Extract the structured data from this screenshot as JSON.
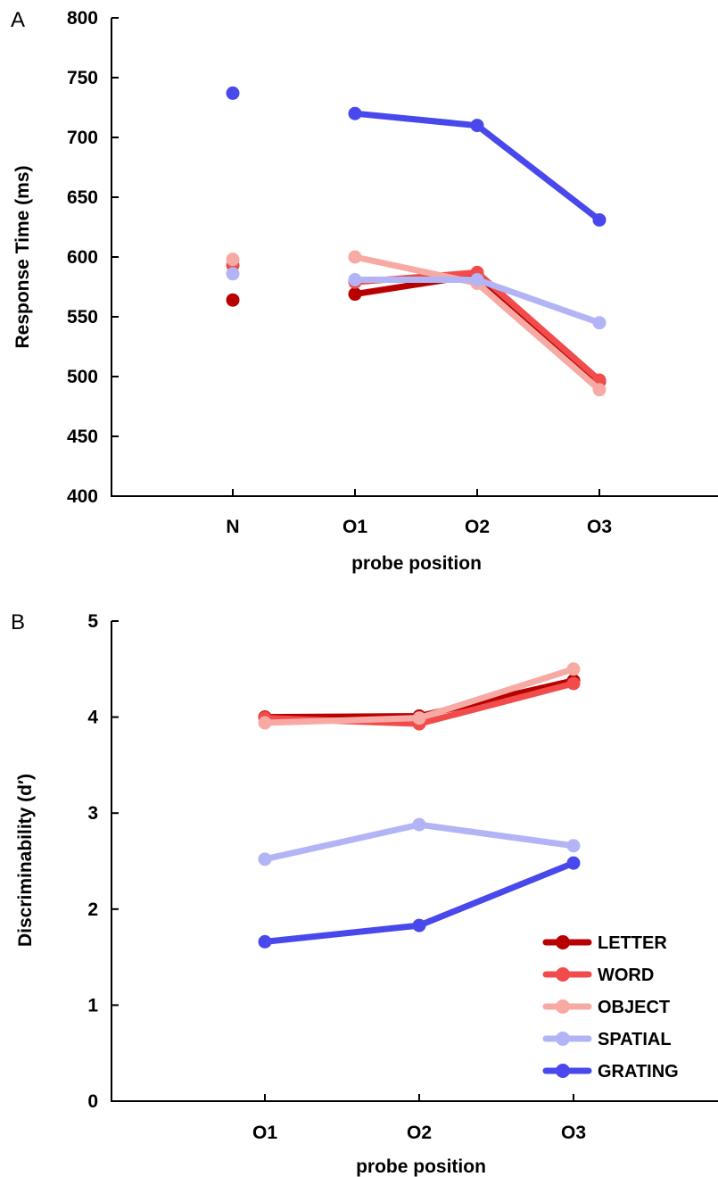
{
  "colors": {
    "LETTER": "#b80000",
    "WORD": "#f24b4b",
    "OBJECT": "#f7aaa4",
    "SPATIAL": "#b2b4f6",
    "GRATING": "#4848ec"
  },
  "chart_data": [
    {
      "panel_label": "A",
      "type": "line",
      "xlabel": "probe position",
      "ylabel": "Response Time (ms)",
      "categories": [
        "N",
        "O1",
        "O2",
        "O3"
      ],
      "ylim": [
        400,
        800
      ],
      "yticks": [
        "400",
        "450",
        "500",
        "550",
        "600",
        "650",
        "700",
        "750",
        "800"
      ],
      "ytick_values": [
        400,
        450,
        500,
        550,
        600,
        650,
        700,
        750,
        800
      ],
      "grid": false,
      "series": [
        {
          "name": "LETTER",
          "values": [
            564,
            569,
            585,
            496
          ]
        },
        {
          "name": "WORD",
          "values": [
            593,
            579,
            587,
            497
          ]
        },
        {
          "name": "OBJECT",
          "values": [
            598,
            600,
            578,
            489
          ]
        },
        {
          "name": "SPATIAL",
          "values": [
            586,
            581,
            581,
            545
          ]
        },
        {
          "name": "GRATING",
          "values": [
            737,
            720,
            710,
            631
          ]
        }
      ],
      "note_connect": "N points shown unconnected"
    },
    {
      "panel_label": "B",
      "type": "line",
      "xlabel": "probe position",
      "ylabel": "Discriminability (d′)",
      "categories": [
        "O1",
        "O2",
        "O3"
      ],
      "ylim": [
        0,
        5
      ],
      "yticks": [
        "0",
        "1",
        "2",
        "3",
        "4",
        "5"
      ],
      "ytick_values": [
        0,
        1,
        2,
        3,
        4,
        5
      ],
      "grid": false,
      "legend": "bottom-right",
      "series": [
        {
          "name": "LETTER",
          "values": [
            4.0,
            4.01,
            4.38
          ]
        },
        {
          "name": "WORD",
          "values": [
            3.99,
            3.93,
            4.35
          ]
        },
        {
          "name": "OBJECT",
          "values": [
            3.94,
            3.99,
            4.5
          ]
        },
        {
          "name": "SPATIAL",
          "values": [
            2.52,
            2.88,
            2.66
          ]
        },
        {
          "name": "GRATING",
          "values": [
            1.66,
            1.83,
            2.48
          ]
        }
      ]
    }
  ]
}
